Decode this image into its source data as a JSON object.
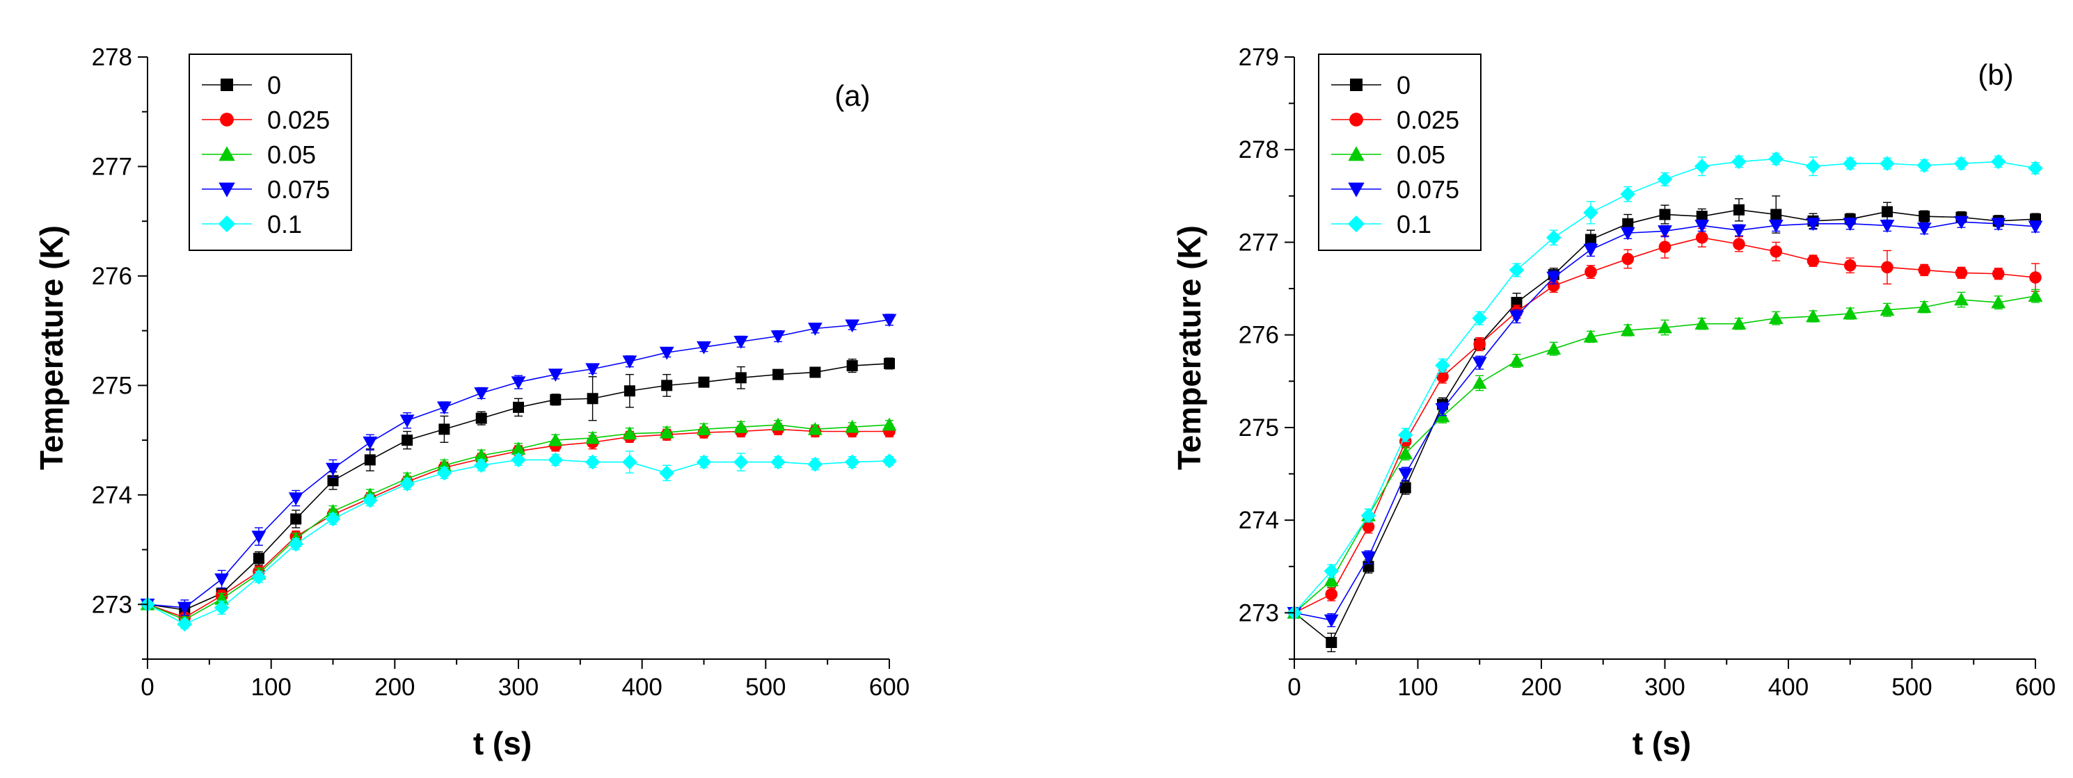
{
  "chart_data": [
    {
      "type": "line",
      "panel_label": "(a)",
      "xlabel": "t (s)",
      "ylabel": "Temperature (K)",
      "xlim": [
        0,
        600
      ],
      "ylim": [
        272.5,
        278
      ],
      "xticks": [
        0,
        100,
        200,
        300,
        400,
        500,
        600
      ],
      "yticks": [
        273,
        274,
        275,
        276,
        277,
        278
      ],
      "legend_position": "top-left",
      "x": [
        0,
        30,
        60,
        90,
        120,
        150,
        180,
        210,
        240,
        270,
        300,
        330,
        360,
        390,
        420,
        450,
        480,
        510,
        540,
        570,
        600
      ],
      "series": [
        {
          "name": "0",
          "color": "#000000",
          "marker": "square",
          "values": [
            273.0,
            272.95,
            273.1,
            273.42,
            273.78,
            274.13,
            274.32,
            274.5,
            274.6,
            274.7,
            274.8,
            274.87,
            274.88,
            274.95,
            275.0,
            275.03,
            275.07,
            275.1,
            275.12,
            275.18,
            275.2
          ],
          "errors": [
            0,
            0.05,
            0.05,
            0.06,
            0.08,
            0.08,
            0.1,
            0.08,
            0.12,
            0.06,
            0.08,
            0.05,
            0.2,
            0.15,
            0.1,
            0.04,
            0.1,
            0.04,
            0.04,
            0.06,
            0.05
          ]
        },
        {
          "name": "0.025",
          "color": "#ff0000",
          "marker": "circle",
          "values": [
            273.0,
            272.88,
            273.08,
            273.3,
            273.62,
            273.82,
            273.97,
            274.12,
            274.25,
            274.33,
            274.4,
            274.45,
            274.48,
            274.53,
            274.55,
            274.57,
            274.58,
            274.6,
            274.58,
            274.58,
            274.58
          ],
          "errors": [
            0,
            0.04,
            0.05,
            0.05,
            0.05,
            0.05,
            0.05,
            0.05,
            0.05,
            0.05,
            0.05,
            0.05,
            0.06,
            0.05,
            0.05,
            0.05,
            0.05,
            0.05,
            0.05,
            0.05,
            0.05
          ]
        },
        {
          "name": "0.05",
          "color": "#00cc00",
          "marker": "triangle-up",
          "values": [
            273.0,
            272.86,
            273.05,
            273.28,
            273.6,
            273.85,
            274.0,
            274.15,
            274.27,
            274.36,
            274.42,
            274.5,
            274.52,
            274.56,
            274.57,
            274.6,
            274.62,
            274.64,
            274.6,
            274.62,
            274.64
          ],
          "errors": [
            0,
            0.04,
            0.05,
            0.05,
            0.05,
            0.05,
            0.05,
            0.05,
            0.05,
            0.05,
            0.05,
            0.05,
            0.05,
            0.05,
            0.05,
            0.05,
            0.05,
            0.04,
            0.04,
            0.04,
            0.04
          ]
        },
        {
          "name": "0.075",
          "color": "#0000ff",
          "marker": "triangle-down",
          "values": [
            273.0,
            272.97,
            273.23,
            273.62,
            273.97,
            274.24,
            274.48,
            274.68,
            274.8,
            274.93,
            275.03,
            275.1,
            275.15,
            275.22,
            275.3,
            275.35,
            275.4,
            275.45,
            275.52,
            275.55,
            275.6
          ],
          "errors": [
            0,
            0.07,
            0.08,
            0.08,
            0.07,
            0.08,
            0.07,
            0.07,
            0.05,
            0.05,
            0.06,
            0.04,
            0.04,
            0.05,
            0.04,
            0.04,
            0.05,
            0.05,
            0.04,
            0.04,
            0.05
          ]
        },
        {
          "name": "0.1",
          "color": "#00ffff",
          "marker": "diamond",
          "values": [
            273.0,
            272.82,
            272.97,
            273.25,
            273.55,
            273.78,
            273.95,
            274.1,
            274.2,
            274.27,
            274.32,
            274.32,
            274.3,
            274.3,
            274.2,
            274.3,
            274.3,
            274.3,
            274.28,
            274.3,
            274.31
          ],
          "errors": [
            0,
            0.04,
            0.06,
            0.05,
            0.05,
            0.05,
            0.05,
            0.05,
            0.05,
            0.05,
            0.05,
            0.05,
            0.05,
            0.1,
            0.07,
            0.05,
            0.08,
            0.05,
            0.05,
            0.05,
            0.04
          ]
        }
      ]
    },
    {
      "type": "line",
      "panel_label": "(b)",
      "xlabel": "t (s)",
      "ylabel": "Temperature (K)",
      "xlim": [
        0,
        600
      ],
      "ylim": [
        272.5,
        279
      ],
      "xticks": [
        0,
        100,
        200,
        300,
        400,
        500,
        600
      ],
      "yticks": [
        273,
        274,
        275,
        276,
        277,
        278,
        279
      ],
      "legend_position": "top-left",
      "x": [
        0,
        30,
        60,
        90,
        120,
        150,
        180,
        210,
        240,
        270,
        300,
        330,
        360,
        390,
        420,
        450,
        480,
        510,
        540,
        570,
        600
      ],
      "series": [
        {
          "name": "0",
          "color": "#000000",
          "marker": "square",
          "values": [
            273.0,
            272.68,
            273.5,
            274.35,
            275.25,
            275.9,
            276.35,
            276.65,
            277.03,
            277.2,
            277.3,
            277.28,
            277.35,
            277.3,
            277.23,
            277.25,
            277.33,
            277.28,
            277.27,
            277.23,
            277.25
          ],
          "errors": [
            0,
            0.1,
            0.07,
            0.07,
            0.07,
            0.07,
            0.1,
            0.07,
            0.1,
            0.1,
            0.1,
            0.08,
            0.12,
            0.2,
            0.08,
            0.06,
            0.1,
            0.06,
            0.06,
            0.06,
            0.06
          ]
        },
        {
          "name": "0.025",
          "color": "#ff0000",
          "marker": "circle",
          "values": [
            273.0,
            273.2,
            273.93,
            274.85,
            275.55,
            275.9,
            276.25,
            276.53,
            276.68,
            276.82,
            276.95,
            277.05,
            276.98,
            276.9,
            276.8,
            276.75,
            276.73,
            276.7,
            276.67,
            276.66,
            276.62
          ],
          "errors": [
            0,
            0.07,
            0.07,
            0.07,
            0.07,
            0.07,
            0.07,
            0.07,
            0.07,
            0.1,
            0.12,
            0.1,
            0.08,
            0.1,
            0.06,
            0.08,
            0.18,
            0.06,
            0.06,
            0.06,
            0.15
          ]
        },
        {
          "name": "0.05",
          "color": "#00cc00",
          "marker": "triangle-up",
          "values": [
            273.0,
            273.35,
            274.05,
            274.72,
            275.12,
            275.48,
            275.72,
            275.85,
            275.98,
            276.05,
            276.08,
            276.12,
            276.12,
            276.18,
            276.2,
            276.23,
            276.27,
            276.3,
            276.38,
            276.35,
            276.42
          ],
          "errors": [
            0,
            0.07,
            0.07,
            0.07,
            0.07,
            0.08,
            0.07,
            0.07,
            0.06,
            0.06,
            0.08,
            0.06,
            0.06,
            0.07,
            0.06,
            0.06,
            0.07,
            0.06,
            0.08,
            0.07,
            0.07
          ]
        },
        {
          "name": "0.075",
          "color": "#0000ff",
          "marker": "triangle-down",
          "values": [
            273.0,
            272.92,
            273.6,
            274.5,
            275.2,
            275.7,
            276.2,
            276.62,
            276.92,
            277.1,
            277.12,
            277.18,
            277.13,
            277.18,
            277.2,
            277.2,
            277.18,
            277.15,
            277.22,
            277.2,
            277.17
          ],
          "errors": [
            0,
            0.07,
            0.07,
            0.07,
            0.07,
            0.07,
            0.07,
            0.07,
            0.07,
            0.06,
            0.06,
            0.06,
            0.06,
            0.06,
            0.06,
            0.06,
            0.06,
            0.06,
            0.06,
            0.06,
            0.06
          ]
        },
        {
          "name": "0.1",
          "color": "#00ffff",
          "marker": "diamond",
          "values": [
            273.0,
            273.45,
            274.05,
            274.92,
            275.67,
            276.18,
            276.7,
            277.05,
            277.32,
            277.52,
            277.68,
            277.82,
            277.87,
            277.9,
            277.82,
            277.85,
            277.85,
            277.83,
            277.85,
            277.87,
            277.8
          ],
          "errors": [
            0,
            0.07,
            0.07,
            0.07,
            0.07,
            0.07,
            0.07,
            0.08,
            0.12,
            0.08,
            0.07,
            0.1,
            0.06,
            0.06,
            0.1,
            0.06,
            0.06,
            0.06,
            0.06,
            0.06,
            0.06
          ]
        }
      ]
    }
  ]
}
